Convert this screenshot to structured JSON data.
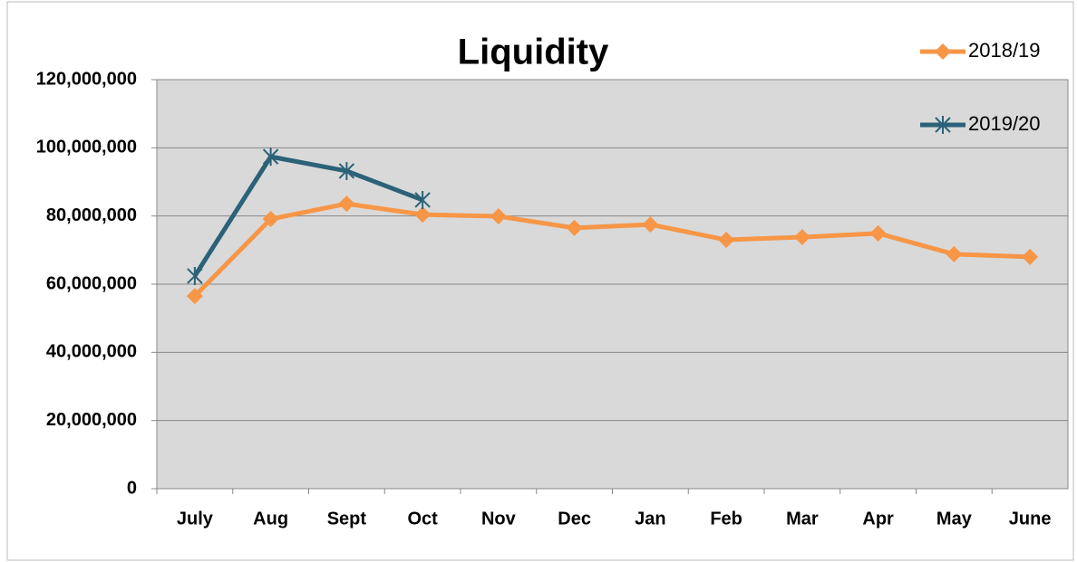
{
  "chart_data": {
    "type": "line",
    "title": "Liquidity",
    "categories": [
      "July",
      "Aug",
      "Sept",
      "Oct",
      "Nov",
      "Dec",
      "Jan",
      "Feb",
      "Mar",
      "Apr",
      "May",
      "June"
    ],
    "series": [
      {
        "name": "2018/19",
        "color": "#f79646",
        "marker": "diamond",
        "values": [
          56500000,
          79100000,
          83600000,
          80400000,
          79900000,
          76500000,
          77500000,
          73000000,
          73800000,
          74900000,
          68800000,
          68000000
        ]
      },
      {
        "name": "2019/20",
        "color": "#2b6278",
        "marker": "star",
        "values": [
          62400000,
          97400000,
          93200000,
          84700000,
          null,
          null,
          null,
          null,
          null,
          null,
          null,
          null
        ]
      }
    ],
    "ylim": [
      0,
      120000000
    ],
    "yticks": [
      0,
      {
        "value": 20000000,
        "label": "20,000,000"
      },
      {
        "value": 40000000,
        "label": "40,000,000"
      },
      {
        "value": 60000000,
        "label": "60,000,000"
      },
      {
        "value": 80000000,
        "label": "80,000,000"
      },
      {
        "value": 100000000,
        "label": "100,000,000"
      },
      {
        "value": 120000000,
        "label": "120,000,000"
      }
    ],
    "grid": true,
    "legend": "top-right"
  }
}
